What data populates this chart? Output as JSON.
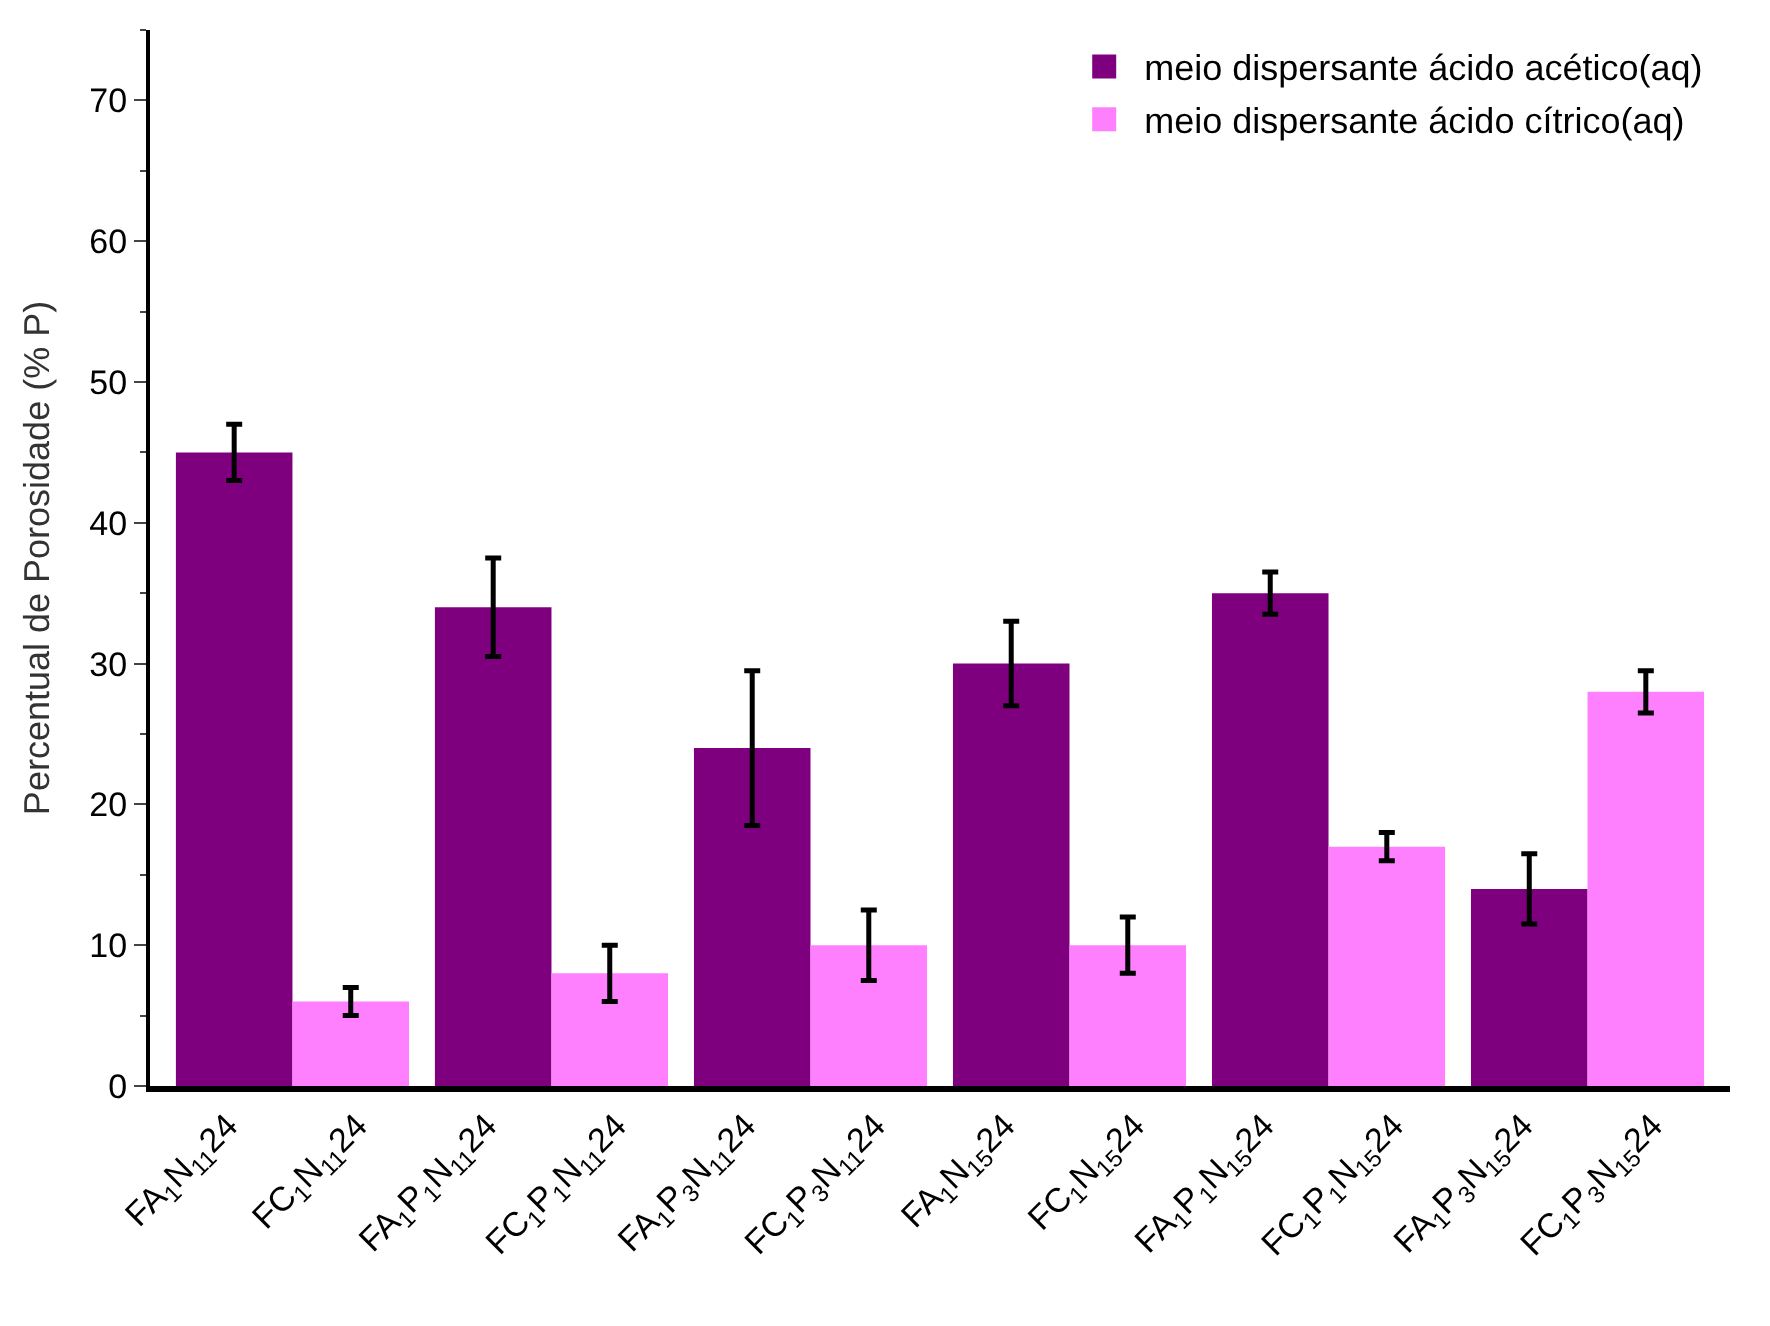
{
  "chart_data": {
    "type": "bar",
    "ylabel": "Percentual de Porosidade (% P)",
    "categories": [
      "FA$_{1}$N$_{11}$24",
      "FC$_{1}$N$_{11}$24",
      "FA$_{1}$P$_{1}$N$_{11}$24",
      "FC$_{1}$P$_{1}$N$_{11}$24",
      "FA$_{1}$P$_{3}$N$_{11}$24",
      "FC$_{1}$P$_{3}$N$_{11}$24",
      "FA$_{1}$N$_{15}$24",
      "FC$_{1}$N$_{15}$24",
      "FA$_{1}$P$_{1}$N$_{15}$24",
      "FC$_{1}$P$_{1}$N$_{15}$24",
      "FA$_{1}$P$_{3}$N$_{15}$24",
      "FC$_{1}$P$_{3}$N$_{15}$24"
    ],
    "series": [
      {
        "name": "meio dispersante ácido acético(aq)",
        "color": "#7f007f",
        "values": [
          45,
          null,
          34,
          null,
          24,
          null,
          30,
          null,
          35,
          null,
          14,
          null
        ],
        "errors": [
          2,
          null,
          3.5,
          null,
          5.5,
          null,
          3,
          null,
          1.5,
          null,
          2.5,
          null
        ]
      },
      {
        "name": "meio dispersante ácido cítrico(aq)",
        "color": "#ff80ff",
        "values": [
          null,
          6,
          null,
          8,
          null,
          10,
          null,
          10,
          null,
          17,
          null,
          28
        ],
        "errors": [
          null,
          1,
          null,
          2,
          null,
          2.5,
          null,
          2,
          null,
          1,
          null,
          1.5
        ]
      }
    ],
    "ylim": [
      0,
      75
    ],
    "yticks": [
      0,
      10,
      20,
      30,
      40,
      50,
      60,
      70
    ],
    "legend": "top right"
  }
}
